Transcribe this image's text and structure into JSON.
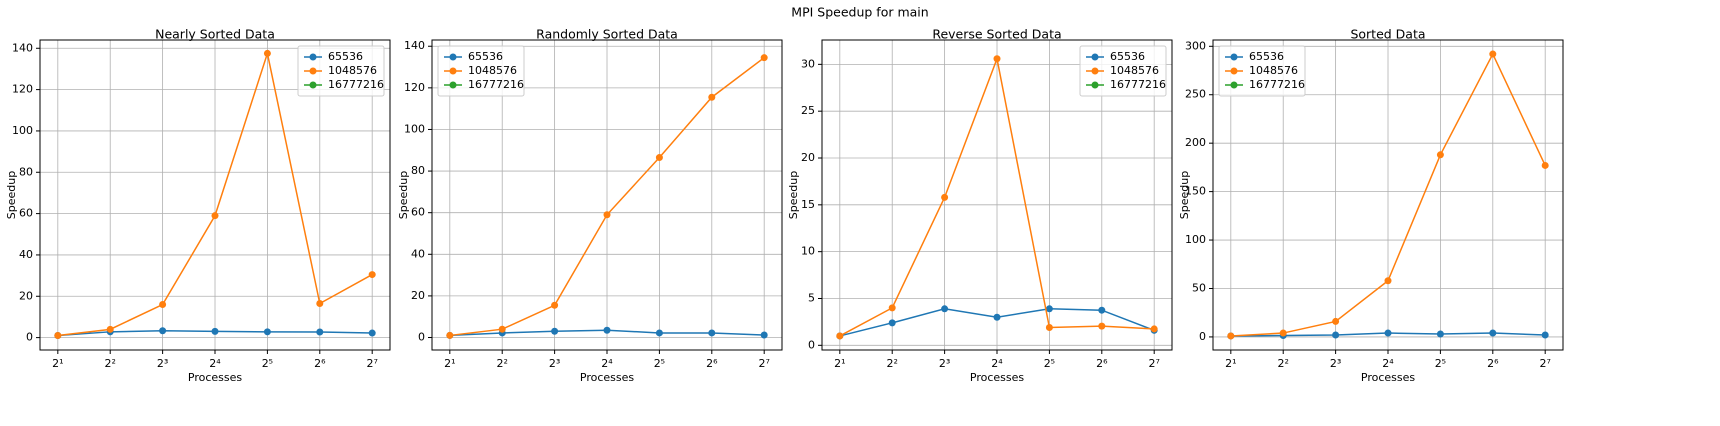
{
  "title": "MPI Speedup for main",
  "chart_data": [
    {
      "type": "line",
      "title": "Nearly Sorted Data",
      "xlabel": "Processes",
      "ylabel": "Speedup",
      "x": [
        2,
        4,
        8,
        16,
        32,
        64,
        128
      ],
      "xscale": "log",
      "log_base": 2,
      "xlim": [
        1.58,
        162
      ],
      "xticks": [
        {
          "value": 2,
          "label": "2¹"
        },
        {
          "value": 4,
          "label": "2²"
        },
        {
          "value": 8,
          "label": "2³"
        },
        {
          "value": 16,
          "label": "2⁴"
        },
        {
          "value": 32,
          "label": "2⁵"
        },
        {
          "value": 64,
          "label": "2⁶"
        },
        {
          "value": 128,
          "label": "2⁷"
        }
      ],
      "ylim": [
        -6,
        144
      ],
      "yticks": [
        0,
        20,
        40,
        60,
        80,
        100,
        120,
        140
      ],
      "grid": true,
      "legend": "upper right",
      "series": [
        {
          "name": "65536",
          "color": "#1f77b4",
          "values": [
            1,
            2.8,
            3.3,
            3,
            2.8,
            2.7,
            2.2
          ]
        },
        {
          "name": "1048576",
          "color": "#ff7f0e",
          "values": [
            1,
            4,
            16,
            59,
            137.5,
            16.5,
            30.5
          ]
        },
        {
          "name": "16777216",
          "color": "#2ca02c",
          "values": [
            null,
            null,
            null,
            null,
            null,
            null,
            null
          ]
        }
      ]
    },
    {
      "type": "line",
      "title": "Randomly Sorted Data",
      "xlabel": "Processes",
      "ylabel": "Speedup",
      "x": [
        2,
        4,
        8,
        16,
        32,
        64,
        128
      ],
      "xscale": "log",
      "log_base": 2,
      "xlim": [
        1.58,
        162
      ],
      "xticks": [
        {
          "value": 2,
          "label": "2¹"
        },
        {
          "value": 4,
          "label": "2²"
        },
        {
          "value": 8,
          "label": "2³"
        },
        {
          "value": 16,
          "label": "2⁴"
        },
        {
          "value": 32,
          "label": "2⁵"
        },
        {
          "value": 64,
          "label": "2⁶"
        },
        {
          "value": 128,
          "label": "2⁷"
        }
      ],
      "ylim": [
        -6,
        143
      ],
      "yticks": [
        0,
        20,
        40,
        60,
        80,
        100,
        120,
        140
      ],
      "grid": true,
      "legend": "upper left",
      "series": [
        {
          "name": "65536",
          "color": "#1f77b4",
          "values": [
            1,
            2.2,
            3,
            3.5,
            2.2,
            2.2,
            1.2
          ]
        },
        {
          "name": "1048576",
          "color": "#ff7f0e",
          "values": [
            1,
            4,
            15.5,
            59,
            86.5,
            115.5,
            134.5
          ]
        },
        {
          "name": "16777216",
          "color": "#2ca02c",
          "values": [
            null,
            null,
            null,
            null,
            null,
            null,
            null
          ]
        }
      ]
    },
    {
      "type": "line",
      "title": "Reverse Sorted Data",
      "xlabel": "Processes",
      "ylabel": "Speedup",
      "x": [
        2,
        4,
        8,
        16,
        32,
        64,
        128
      ],
      "xscale": "log",
      "log_base": 2,
      "xlim": [
        1.58,
        162
      ],
      "xticks": [
        {
          "value": 2,
          "label": "2¹"
        },
        {
          "value": 4,
          "label": "2²"
        },
        {
          "value": 8,
          "label": "2³"
        },
        {
          "value": 16,
          "label": "2⁴"
        },
        {
          "value": 32,
          "label": "2⁵"
        },
        {
          "value": 64,
          "label": "2⁶"
        },
        {
          "value": 128,
          "label": "2⁷"
        }
      ],
      "ylim": [
        -0.5,
        32.6
      ],
      "yticks": [
        0,
        5,
        10,
        15,
        20,
        25,
        30
      ],
      "grid": true,
      "legend": "upper right",
      "series": [
        {
          "name": "65536",
          "color": "#1f77b4",
          "values": [
            1,
            2.4,
            3.9,
            3,
            3.9,
            3.75,
            1.6
          ]
        },
        {
          "name": "1048576",
          "color": "#ff7f0e",
          "values": [
            1,
            4,
            15.8,
            30.6,
            1.9,
            2.05,
            1.75
          ]
        },
        {
          "name": "16777216",
          "color": "#2ca02c",
          "values": [
            null,
            null,
            null,
            null,
            null,
            null,
            null
          ]
        }
      ]
    },
    {
      "type": "line",
      "title": "Sorted Data",
      "xlabel": "Processes",
      "ylabel": "Speedup",
      "x": [
        2,
        4,
        8,
        16,
        32,
        64,
        128
      ],
      "xscale": "log",
      "log_base": 2,
      "xlim": [
        1.58,
        162
      ],
      "xticks": [
        {
          "value": 2,
          "label": "2¹"
        },
        {
          "value": 4,
          "label": "2²"
        },
        {
          "value": 8,
          "label": "2³"
        },
        {
          "value": 16,
          "label": "2⁴"
        },
        {
          "value": 32,
          "label": "2⁵"
        },
        {
          "value": 64,
          "label": "2⁶"
        },
        {
          "value": 128,
          "label": "2⁷"
        }
      ],
      "ylim": [
        -13.5,
        306.5
      ],
      "yticks": [
        0,
        50,
        100,
        150,
        200,
        250,
        300
      ],
      "grid": true,
      "legend": "upper left",
      "series": [
        {
          "name": "65536",
          "color": "#1f77b4",
          "values": [
            1,
            1.5,
            2,
            4,
            3,
            4,
            2
          ]
        },
        {
          "name": "1048576",
          "color": "#ff7f0e",
          "values": [
            1,
            4,
            16,
            58,
            188,
            292,
            177
          ]
        },
        {
          "name": "16777216",
          "color": "#2ca02c",
          "values": [
            null,
            null,
            null,
            null,
            null,
            null,
            null
          ]
        }
      ]
    }
  ]
}
